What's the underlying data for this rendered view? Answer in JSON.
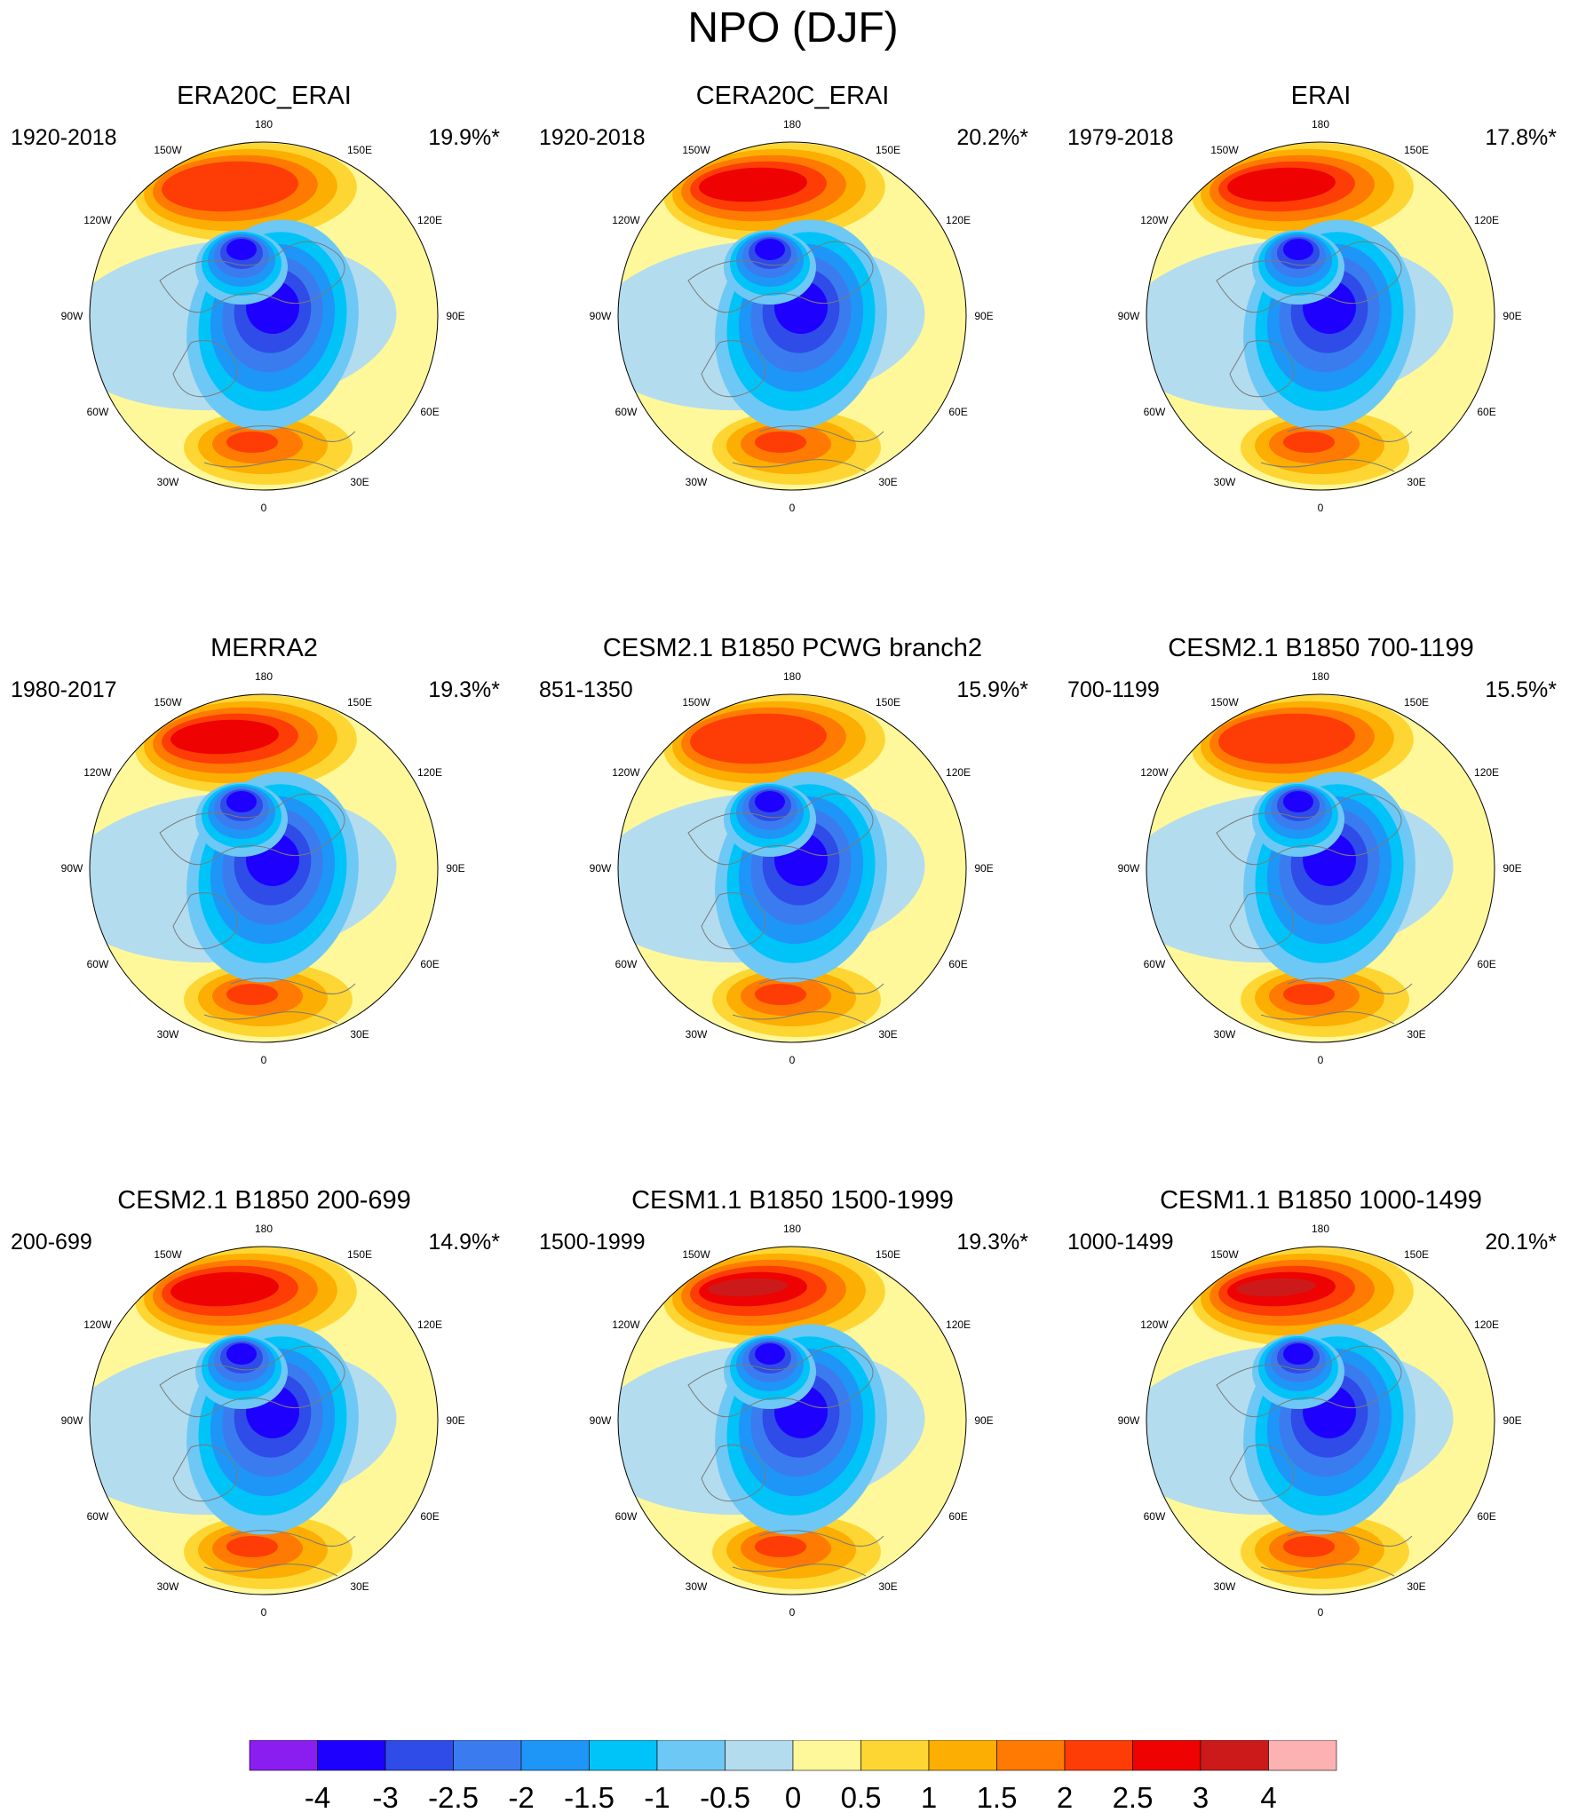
{
  "figure_title": "NPO (DJF)",
  "chart_data": {
    "type": "heatmap",
    "title": "NPO (DJF)",
    "projection": "north-polar-stereographic",
    "longitude_labels": [
      "180",
      "150W",
      "150E",
      "120W",
      "120E",
      "90W",
      "90E",
      "60W",
      "60E",
      "30W",
      "30E",
      "0"
    ],
    "colorbar": {
      "levels": [
        "-4",
        "-3",
        "-2.5",
        "-2",
        "-1.5",
        "-1",
        "-0.5",
        "0",
        "0.5",
        "1",
        "1.5",
        "2",
        "2.5",
        "3",
        "4"
      ],
      "colors": [
        "#8a1ef0",
        "#1e00ff",
        "#2f4be8",
        "#3a7cf0",
        "#1e96f8",
        "#00c3f8",
        "#6ec8f5",
        "#b3dcef",
        "#fef89a",
        "#fed633",
        "#fdae02",
        "#fe7a02",
        "#fe3c05",
        "#ee0202",
        "#cc1a1a",
        "#fcb2b2"
      ]
    },
    "panels": [
      {
        "title": "ERA20C_ERAI",
        "period": "1920-2018",
        "variance": "19.9%*",
        "positive_max": 2.0,
        "negative_min": -3.0
      },
      {
        "title": "CERA20C_ERAI",
        "period": "1920-2018",
        "variance": "20.2%*",
        "positive_max": 2.5,
        "negative_min": -3.0
      },
      {
        "title": "ERAI",
        "period": "1979-2018",
        "variance": "17.8%*",
        "positive_max": 2.5,
        "negative_min": -3.0
      },
      {
        "title": "MERRA2",
        "period": "1980-2017",
        "variance": "19.3%*",
        "positive_max": 2.5,
        "negative_min": -3.0
      },
      {
        "title": "CESM2.1 B1850 PCWG branch2",
        "period": "851-1350",
        "variance": "15.9%*",
        "positive_max": 2.0,
        "negative_min": -3.0
      },
      {
        "title": "CESM2.1 B1850 700-1199",
        "period": "700-1199",
        "variance": "15.5%*",
        "positive_max": 2.0,
        "negative_min": -3.0
      },
      {
        "title": "CESM2.1 B1850 200-699",
        "period": "200-699",
        "variance": "14.9%*",
        "positive_max": 2.5,
        "negative_min": -3.0
      },
      {
        "title": "CESM1.1 B1850 1500-1999",
        "period": "1500-1999",
        "variance": "19.3%*",
        "positive_max": 3.0,
        "negative_min": -3.0
      },
      {
        "title": "CESM1.1 B1850 1000-1499",
        "period": "1000-1499",
        "variance": "20.1%*",
        "positive_max": 3.0,
        "negative_min": -3.0
      }
    ]
  }
}
